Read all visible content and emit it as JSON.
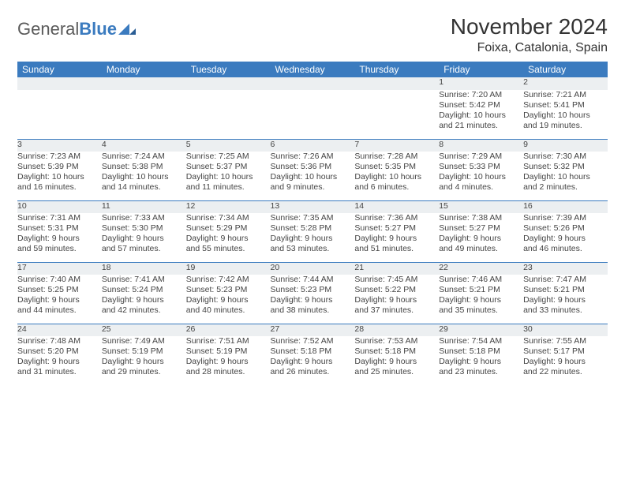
{
  "logo": {
    "word1": "General",
    "word2": "Blue"
  },
  "title": "November 2024",
  "location": "Foixa, Catalonia, Spain",
  "colors": {
    "header_bg": "#3b7bbf",
    "header_text": "#ffffff",
    "daynum_bg": "#eceff1",
    "row_divider": "#3b7bbf",
    "body_text": "#444444",
    "logo_gray": "#5a5a5a",
    "logo_blue": "#3b7bbf"
  },
  "typography": {
    "title_fontsize": 28,
    "location_fontsize": 16,
    "header_fontsize": 12,
    "cell_fontsize": 10.5
  },
  "day_headers": [
    "Sunday",
    "Monday",
    "Tuesday",
    "Wednesday",
    "Thursday",
    "Friday",
    "Saturday"
  ],
  "weeks": [
    [
      {
        "num": "",
        "sunrise": "",
        "sunset": "",
        "daylight1": "",
        "daylight2": ""
      },
      {
        "num": "",
        "sunrise": "",
        "sunset": "",
        "daylight1": "",
        "daylight2": ""
      },
      {
        "num": "",
        "sunrise": "",
        "sunset": "",
        "daylight1": "",
        "daylight2": ""
      },
      {
        "num": "",
        "sunrise": "",
        "sunset": "",
        "daylight1": "",
        "daylight2": ""
      },
      {
        "num": "",
        "sunrise": "",
        "sunset": "",
        "daylight1": "",
        "daylight2": ""
      },
      {
        "num": "1",
        "sunrise": "Sunrise: 7:20 AM",
        "sunset": "Sunset: 5:42 PM",
        "daylight1": "Daylight: 10 hours",
        "daylight2": "and 21 minutes."
      },
      {
        "num": "2",
        "sunrise": "Sunrise: 7:21 AM",
        "sunset": "Sunset: 5:41 PM",
        "daylight1": "Daylight: 10 hours",
        "daylight2": "and 19 minutes."
      }
    ],
    [
      {
        "num": "3",
        "sunrise": "Sunrise: 7:23 AM",
        "sunset": "Sunset: 5:39 PM",
        "daylight1": "Daylight: 10 hours",
        "daylight2": "and 16 minutes."
      },
      {
        "num": "4",
        "sunrise": "Sunrise: 7:24 AM",
        "sunset": "Sunset: 5:38 PM",
        "daylight1": "Daylight: 10 hours",
        "daylight2": "and 14 minutes."
      },
      {
        "num": "5",
        "sunrise": "Sunrise: 7:25 AM",
        "sunset": "Sunset: 5:37 PM",
        "daylight1": "Daylight: 10 hours",
        "daylight2": "and 11 minutes."
      },
      {
        "num": "6",
        "sunrise": "Sunrise: 7:26 AM",
        "sunset": "Sunset: 5:36 PM",
        "daylight1": "Daylight: 10 hours",
        "daylight2": "and 9 minutes."
      },
      {
        "num": "7",
        "sunrise": "Sunrise: 7:28 AM",
        "sunset": "Sunset: 5:35 PM",
        "daylight1": "Daylight: 10 hours",
        "daylight2": "and 6 minutes."
      },
      {
        "num": "8",
        "sunrise": "Sunrise: 7:29 AM",
        "sunset": "Sunset: 5:33 PM",
        "daylight1": "Daylight: 10 hours",
        "daylight2": "and 4 minutes."
      },
      {
        "num": "9",
        "sunrise": "Sunrise: 7:30 AM",
        "sunset": "Sunset: 5:32 PM",
        "daylight1": "Daylight: 10 hours",
        "daylight2": "and 2 minutes."
      }
    ],
    [
      {
        "num": "10",
        "sunrise": "Sunrise: 7:31 AM",
        "sunset": "Sunset: 5:31 PM",
        "daylight1": "Daylight: 9 hours",
        "daylight2": "and 59 minutes."
      },
      {
        "num": "11",
        "sunrise": "Sunrise: 7:33 AM",
        "sunset": "Sunset: 5:30 PM",
        "daylight1": "Daylight: 9 hours",
        "daylight2": "and 57 minutes."
      },
      {
        "num": "12",
        "sunrise": "Sunrise: 7:34 AM",
        "sunset": "Sunset: 5:29 PM",
        "daylight1": "Daylight: 9 hours",
        "daylight2": "and 55 minutes."
      },
      {
        "num": "13",
        "sunrise": "Sunrise: 7:35 AM",
        "sunset": "Sunset: 5:28 PM",
        "daylight1": "Daylight: 9 hours",
        "daylight2": "and 53 minutes."
      },
      {
        "num": "14",
        "sunrise": "Sunrise: 7:36 AM",
        "sunset": "Sunset: 5:27 PM",
        "daylight1": "Daylight: 9 hours",
        "daylight2": "and 51 minutes."
      },
      {
        "num": "15",
        "sunrise": "Sunrise: 7:38 AM",
        "sunset": "Sunset: 5:27 PM",
        "daylight1": "Daylight: 9 hours",
        "daylight2": "and 49 minutes."
      },
      {
        "num": "16",
        "sunrise": "Sunrise: 7:39 AM",
        "sunset": "Sunset: 5:26 PM",
        "daylight1": "Daylight: 9 hours",
        "daylight2": "and 46 minutes."
      }
    ],
    [
      {
        "num": "17",
        "sunrise": "Sunrise: 7:40 AM",
        "sunset": "Sunset: 5:25 PM",
        "daylight1": "Daylight: 9 hours",
        "daylight2": "and 44 minutes."
      },
      {
        "num": "18",
        "sunrise": "Sunrise: 7:41 AM",
        "sunset": "Sunset: 5:24 PM",
        "daylight1": "Daylight: 9 hours",
        "daylight2": "and 42 minutes."
      },
      {
        "num": "19",
        "sunrise": "Sunrise: 7:42 AM",
        "sunset": "Sunset: 5:23 PM",
        "daylight1": "Daylight: 9 hours",
        "daylight2": "and 40 minutes."
      },
      {
        "num": "20",
        "sunrise": "Sunrise: 7:44 AM",
        "sunset": "Sunset: 5:23 PM",
        "daylight1": "Daylight: 9 hours",
        "daylight2": "and 38 minutes."
      },
      {
        "num": "21",
        "sunrise": "Sunrise: 7:45 AM",
        "sunset": "Sunset: 5:22 PM",
        "daylight1": "Daylight: 9 hours",
        "daylight2": "and 37 minutes."
      },
      {
        "num": "22",
        "sunrise": "Sunrise: 7:46 AM",
        "sunset": "Sunset: 5:21 PM",
        "daylight1": "Daylight: 9 hours",
        "daylight2": "and 35 minutes."
      },
      {
        "num": "23",
        "sunrise": "Sunrise: 7:47 AM",
        "sunset": "Sunset: 5:21 PM",
        "daylight1": "Daylight: 9 hours",
        "daylight2": "and 33 minutes."
      }
    ],
    [
      {
        "num": "24",
        "sunrise": "Sunrise: 7:48 AM",
        "sunset": "Sunset: 5:20 PM",
        "daylight1": "Daylight: 9 hours",
        "daylight2": "and 31 minutes."
      },
      {
        "num": "25",
        "sunrise": "Sunrise: 7:49 AM",
        "sunset": "Sunset: 5:19 PM",
        "daylight1": "Daylight: 9 hours",
        "daylight2": "and 29 minutes."
      },
      {
        "num": "26",
        "sunrise": "Sunrise: 7:51 AM",
        "sunset": "Sunset: 5:19 PM",
        "daylight1": "Daylight: 9 hours",
        "daylight2": "and 28 minutes."
      },
      {
        "num": "27",
        "sunrise": "Sunrise: 7:52 AM",
        "sunset": "Sunset: 5:18 PM",
        "daylight1": "Daylight: 9 hours",
        "daylight2": "and 26 minutes."
      },
      {
        "num": "28",
        "sunrise": "Sunrise: 7:53 AM",
        "sunset": "Sunset: 5:18 PM",
        "daylight1": "Daylight: 9 hours",
        "daylight2": "and 25 minutes."
      },
      {
        "num": "29",
        "sunrise": "Sunrise: 7:54 AM",
        "sunset": "Sunset: 5:18 PM",
        "daylight1": "Daylight: 9 hours",
        "daylight2": "and 23 minutes."
      },
      {
        "num": "30",
        "sunrise": "Sunrise: 7:55 AM",
        "sunset": "Sunset: 5:17 PM",
        "daylight1": "Daylight: 9 hours",
        "daylight2": "and 22 minutes."
      }
    ]
  ]
}
